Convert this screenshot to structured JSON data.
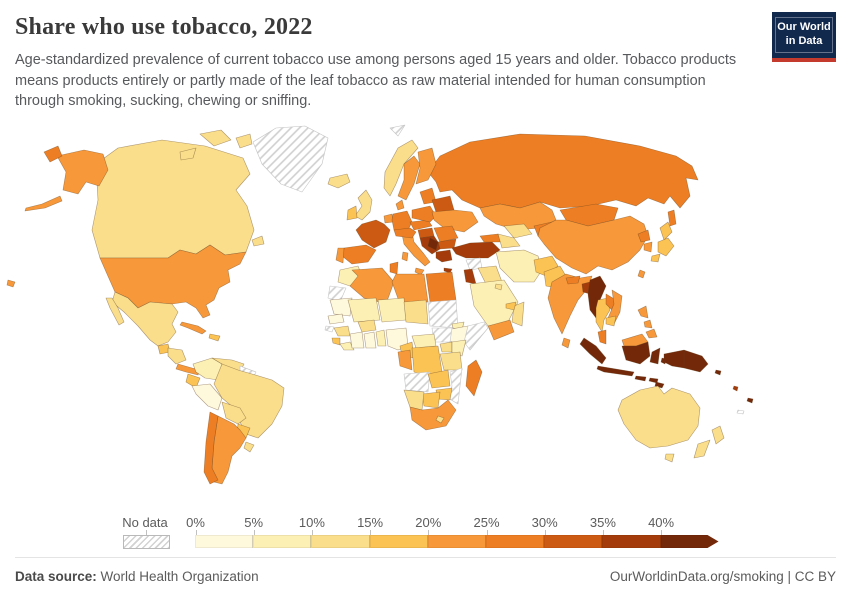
{
  "header": {
    "title": "Share who use tobacco, 2022",
    "subtitle": "Age-standardized prevalence of current tobacco use among persons aged 15 years and older. Tobacco products means products entirely or partly made of the leaf tobacco as raw material intended for human consumption through smoking, sucking, chewing or sniffing."
  },
  "logo": {
    "line1": "Our World",
    "line2": "in Data",
    "bg": "#12294e",
    "accent": "#c43a2d"
  },
  "legend": {
    "no_data_label": "No data",
    "ticks": [
      "0%",
      "5%",
      "10%",
      "15%",
      "20%",
      "25%",
      "30%",
      "35%",
      "40%"
    ],
    "colors": [
      "#fef8dd",
      "#fcf0b4",
      "#fade8c",
      "#fbc254",
      "#f7983a",
      "#ee7e23",
      "#cc5a12",
      "#a33c0a",
      "#73280a"
    ],
    "bin_labels": [
      "0-5%",
      "5-10%",
      "10-15%",
      "15-20%",
      "20-25%",
      "25-30%",
      "30-35%",
      "35-40%",
      "40%+"
    ]
  },
  "map": {
    "regions": {
      "greenland": -1,
      "svalbard": -1,
      "canada": 2,
      "usa": 4,
      "russia": 5,
      "mexico": 2,
      "guatemala": 3,
      "honduras-nicaragua": 2,
      "costa-panama": 4,
      "cuba": 4,
      "hispaniola": 3,
      "colombia": 1,
      "venezuela": 2,
      "guyana": -1,
      "ecuador": 3,
      "peru": 0,
      "brazil": 2,
      "bolivia": 2,
      "paraguay": 3,
      "uruguay": 2,
      "chile": 5,
      "argentina": 4,
      "iceland": 2,
      "uk": 2,
      "ireland": 3,
      "norway": 2,
      "sweden": 4,
      "finland": 4,
      "denmark": 4,
      "benelux": 4,
      "germany": 5,
      "france": 6,
      "spain": 5,
      "portugal": 4,
      "italy": 4,
      "switzerland-austria": 5,
      "czech-slovakia": 5,
      "poland": 5,
      "baltics": 5,
      "belarus": 6,
      "ukraine": 4,
      "hungary": 6,
      "romania": 5,
      "bulgaria": 6,
      "balkans": 7,
      "serbia": 8,
      "greece": 7,
      "turkey": 7,
      "caucasus": 5,
      "syria": -1,
      "iraq": 2,
      "jordan": 7,
      "saudi": 1,
      "yemen": 4,
      "oman": 2,
      "uae": 3,
      "kuwait": 2,
      "iran": 1,
      "afghanistan": 3,
      "pakistan": 3,
      "india": 4,
      "nepal": 5,
      "srilanka": 4,
      "bangladesh": 7,
      "myanmar": 8,
      "thailand": 3,
      "laos": 5,
      "vietnam": 4,
      "cambodia": 3,
      "malaysia": 5,
      "malaysia-borneo": 4,
      "kazakhstan": 4,
      "uzbekistan": 2,
      "turkmenistan": 2,
      "kyrgyz-tajik": 5,
      "mongolia": 5,
      "china": 4,
      "taiwan": 4,
      "nkorea": 5,
      "skorea": 4,
      "japan": 3,
      "philippines": 4,
      "indonesia": 8,
      "timor": 8,
      "newguinea": 8,
      "solomon": 8,
      "vanuatu": 7,
      "fiji": 8,
      "newcaledonia": -1,
      "australia": 2,
      "nz": 2,
      "morocco": 1,
      "wsahara": -1,
      "algeria": 4,
      "tunisia": 5,
      "libya": 4,
      "egypt": 5,
      "mauritania": 0,
      "mali": 1,
      "niger": 1,
      "chad": 2,
      "sudan": -1,
      "eritrea": 1,
      "ethiopia": 0,
      "somalia": -1,
      "southsudan": -1,
      "senegal": 0,
      "guineabissau": -1,
      "guinea": 2,
      "sierraleone": 3,
      "liberia": 1,
      "ivorycoast": 0,
      "ghana": 0,
      "togobenin": 1,
      "burkina": 2,
      "nigeria": 0,
      "cameroon": 3,
      "car": 1,
      "uganda": 2,
      "kenya": 1,
      "tanzania": 2,
      "gaboncongo": 4,
      "drc": 3,
      "angola": -1,
      "zambia": 3,
      "mozambique": -1,
      "zimbabwe": 3,
      "botswana": 3,
      "namibia": 2,
      "southafrica": 4,
      "lesotho": 2,
      "madagascar": 5
    }
  },
  "chart_data": {
    "type": "choropleth map",
    "title": "Share who use tobacco, 2022",
    "unit": "% of persons aged 15+ using tobacco (age-standardized)",
    "legend_position": "bottom",
    "bins": [
      "0-5%",
      "5-10%",
      "10-15%",
      "15-20%",
      "20-25%",
      "25-30%",
      "30-35%",
      "35-40%",
      "40%+",
      "No data"
    ],
    "countries": [
      {
        "name": "Canada",
        "bin": "10-15%"
      },
      {
        "name": "United States",
        "bin": "20-25%"
      },
      {
        "name": "Greenland",
        "bin": "No data"
      },
      {
        "name": "Mexico",
        "bin": "10-15%"
      },
      {
        "name": "Guatemala",
        "bin": "15-20%"
      },
      {
        "name": "Honduras",
        "bin": "10-15%"
      },
      {
        "name": "Panama",
        "bin": "20-25%"
      },
      {
        "name": "Cuba",
        "bin": "20-25%"
      },
      {
        "name": "Colombia",
        "bin": "5-10%"
      },
      {
        "name": "Venezuela",
        "bin": "10-15%"
      },
      {
        "name": "Guyana",
        "bin": "No data"
      },
      {
        "name": "Suriname",
        "bin": "No data"
      },
      {
        "name": "Ecuador",
        "bin": "15-20%"
      },
      {
        "name": "Peru",
        "bin": "0-5%"
      },
      {
        "name": "Brazil",
        "bin": "10-15%"
      },
      {
        "name": "Bolivia",
        "bin": "10-15%"
      },
      {
        "name": "Paraguay",
        "bin": "15-20%"
      },
      {
        "name": "Uruguay",
        "bin": "10-15%"
      },
      {
        "name": "Chile",
        "bin": "25-30%"
      },
      {
        "name": "Argentina",
        "bin": "20-25%"
      },
      {
        "name": "Iceland",
        "bin": "10-15%"
      },
      {
        "name": "United Kingdom",
        "bin": "10-15%"
      },
      {
        "name": "Ireland",
        "bin": "15-20%"
      },
      {
        "name": "Norway",
        "bin": "10-15%"
      },
      {
        "name": "Sweden",
        "bin": "20-25%"
      },
      {
        "name": "Finland",
        "bin": "20-25%"
      },
      {
        "name": "Denmark",
        "bin": "20-25%"
      },
      {
        "name": "Germany",
        "bin": "25-30%"
      },
      {
        "name": "France",
        "bin": "30-35%"
      },
      {
        "name": "Spain",
        "bin": "25-30%"
      },
      {
        "name": "Portugal",
        "bin": "20-25%"
      },
      {
        "name": "Italy",
        "bin": "20-25%"
      },
      {
        "name": "Austria",
        "bin": "25-30%"
      },
      {
        "name": "Poland",
        "bin": "25-30%"
      },
      {
        "name": "Czechia",
        "bin": "25-30%"
      },
      {
        "name": "Hungary",
        "bin": "30-35%"
      },
      {
        "name": "Romania",
        "bin": "25-30%"
      },
      {
        "name": "Bulgaria",
        "bin": "30-35%"
      },
      {
        "name": "Serbia",
        "bin": "40%+"
      },
      {
        "name": "Bosnia and Herzegovina",
        "bin": "35-40%"
      },
      {
        "name": "Greece",
        "bin": "35-40%"
      },
      {
        "name": "Ukraine",
        "bin": "20-25%"
      },
      {
        "name": "Belarus",
        "bin": "30-35%"
      },
      {
        "name": "Estonia/Latvia/Lithuania",
        "bin": "25-30%"
      },
      {
        "name": "Russia",
        "bin": "25-30%"
      },
      {
        "name": "Turkey",
        "bin": "35-40%"
      },
      {
        "name": "Georgia/Azerbaijan",
        "bin": "25-30%"
      },
      {
        "name": "Syria",
        "bin": "No data"
      },
      {
        "name": "Iraq",
        "bin": "10-15%"
      },
      {
        "name": "Jordan",
        "bin": "35-40%"
      },
      {
        "name": "Saudi Arabia",
        "bin": "5-10%"
      },
      {
        "name": "Yemen",
        "bin": "20-25%"
      },
      {
        "name": "Oman",
        "bin": "10-15%"
      },
      {
        "name": "United Arab Emirates",
        "bin": "15-20%"
      },
      {
        "name": "Iran",
        "bin": "5-10%"
      },
      {
        "name": "Afghanistan",
        "bin": "15-20%"
      },
      {
        "name": "Pakistan",
        "bin": "15-20%"
      },
      {
        "name": "India",
        "bin": "20-25%"
      },
      {
        "name": "Nepal",
        "bin": "25-30%"
      },
      {
        "name": "Sri Lanka",
        "bin": "20-25%"
      },
      {
        "name": "Bangladesh",
        "bin": "35-40%"
      },
      {
        "name": "Myanmar",
        "bin": "40%+"
      },
      {
        "name": "Thailand",
        "bin": "15-20%"
      },
      {
        "name": "Laos",
        "bin": "25-30%"
      },
      {
        "name": "Vietnam",
        "bin": "20-25%"
      },
      {
        "name": "Cambodia",
        "bin": "15-20%"
      },
      {
        "name": "Malaysia",
        "bin": "25-30%"
      },
      {
        "name": "Kazakhstan",
        "bin": "20-25%"
      },
      {
        "name": "Uzbekistan",
        "bin": "10-15%"
      },
      {
        "name": "Turkmenistan",
        "bin": "10-15%"
      },
      {
        "name": "Kyrgyzstan/Tajikistan",
        "bin": "25-30%"
      },
      {
        "name": "Mongolia",
        "bin": "25-30%"
      },
      {
        "name": "China",
        "bin": "20-25%"
      },
      {
        "name": "South Korea",
        "bin": "20-25%"
      },
      {
        "name": "Japan",
        "bin": "15-20%"
      },
      {
        "name": "Philippines",
        "bin": "20-25%"
      },
      {
        "name": "Indonesia",
        "bin": "40%+"
      },
      {
        "name": "Timor-Leste",
        "bin": "40%+"
      },
      {
        "name": "Papua New Guinea",
        "bin": "40%+"
      },
      {
        "name": "Solomon Islands",
        "bin": "40%+"
      },
      {
        "name": "Vanuatu",
        "bin": "35-40%"
      },
      {
        "name": "Fiji",
        "bin": "40%+"
      },
      {
        "name": "Australia",
        "bin": "10-15%"
      },
      {
        "name": "New Zealand",
        "bin": "10-15%"
      },
      {
        "name": "Morocco",
        "bin": "5-10%"
      },
      {
        "name": "Western Sahara",
        "bin": "No data"
      },
      {
        "name": "Algeria",
        "bin": "20-25%"
      },
      {
        "name": "Tunisia",
        "bin": "25-30%"
      },
      {
        "name": "Libya",
        "bin": "20-25%"
      },
      {
        "name": "Egypt",
        "bin": "25-30%"
      },
      {
        "name": "Mauritania",
        "bin": "0-5%"
      },
      {
        "name": "Mali",
        "bin": "5-10%"
      },
      {
        "name": "Niger",
        "bin": "5-10%"
      },
      {
        "name": "Chad",
        "bin": "10-15%"
      },
      {
        "name": "Sudan",
        "bin": "No data"
      },
      {
        "name": "South Sudan",
        "bin": "No data"
      },
      {
        "name": "Eritrea",
        "bin": "5-10%"
      },
      {
        "name": "Ethiopia",
        "bin": "0-5%"
      },
      {
        "name": "Somalia",
        "bin": "No data"
      },
      {
        "name": "Senegal",
        "bin": "0-5%"
      },
      {
        "name": "Guinea-Bissau",
        "bin": "No data"
      },
      {
        "name": "Guinea",
        "bin": "10-15%"
      },
      {
        "name": "Sierra Leone",
        "bin": "15-20%"
      },
      {
        "name": "Liberia",
        "bin": "5-10%"
      },
      {
        "name": "Cote d'Ivoire",
        "bin": "0-5%"
      },
      {
        "name": "Ghana",
        "bin": "0-5%"
      },
      {
        "name": "Togo/Benin",
        "bin": "5-10%"
      },
      {
        "name": "Burkina Faso",
        "bin": "10-15%"
      },
      {
        "name": "Nigeria",
        "bin": "0-5%"
      },
      {
        "name": "Cameroon",
        "bin": "15-20%"
      },
      {
        "name": "Central African Republic",
        "bin": "5-10%"
      },
      {
        "name": "Uganda",
        "bin": "10-15%"
      },
      {
        "name": "Kenya",
        "bin": "5-10%"
      },
      {
        "name": "Tanzania",
        "bin": "10-15%"
      },
      {
        "name": "Gabon/Congo",
        "bin": "20-25%"
      },
      {
        "name": "DR Congo",
        "bin": "15-20%"
      },
      {
        "name": "Angola",
        "bin": "No data"
      },
      {
        "name": "Zambia",
        "bin": "15-20%"
      },
      {
        "name": "Mozambique",
        "bin": "No data"
      },
      {
        "name": "Zimbabwe",
        "bin": "15-20%"
      },
      {
        "name": "Botswana",
        "bin": "15-20%"
      },
      {
        "name": "Namibia",
        "bin": "10-15%"
      },
      {
        "name": "South Africa",
        "bin": "20-25%"
      },
      {
        "name": "Madagascar",
        "bin": "25-30%"
      }
    ]
  },
  "footer": {
    "datasource_label": "Data source:",
    "datasource_value": " World Health Organization",
    "credit": "OurWorldinData.org/smoking | CC BY"
  }
}
